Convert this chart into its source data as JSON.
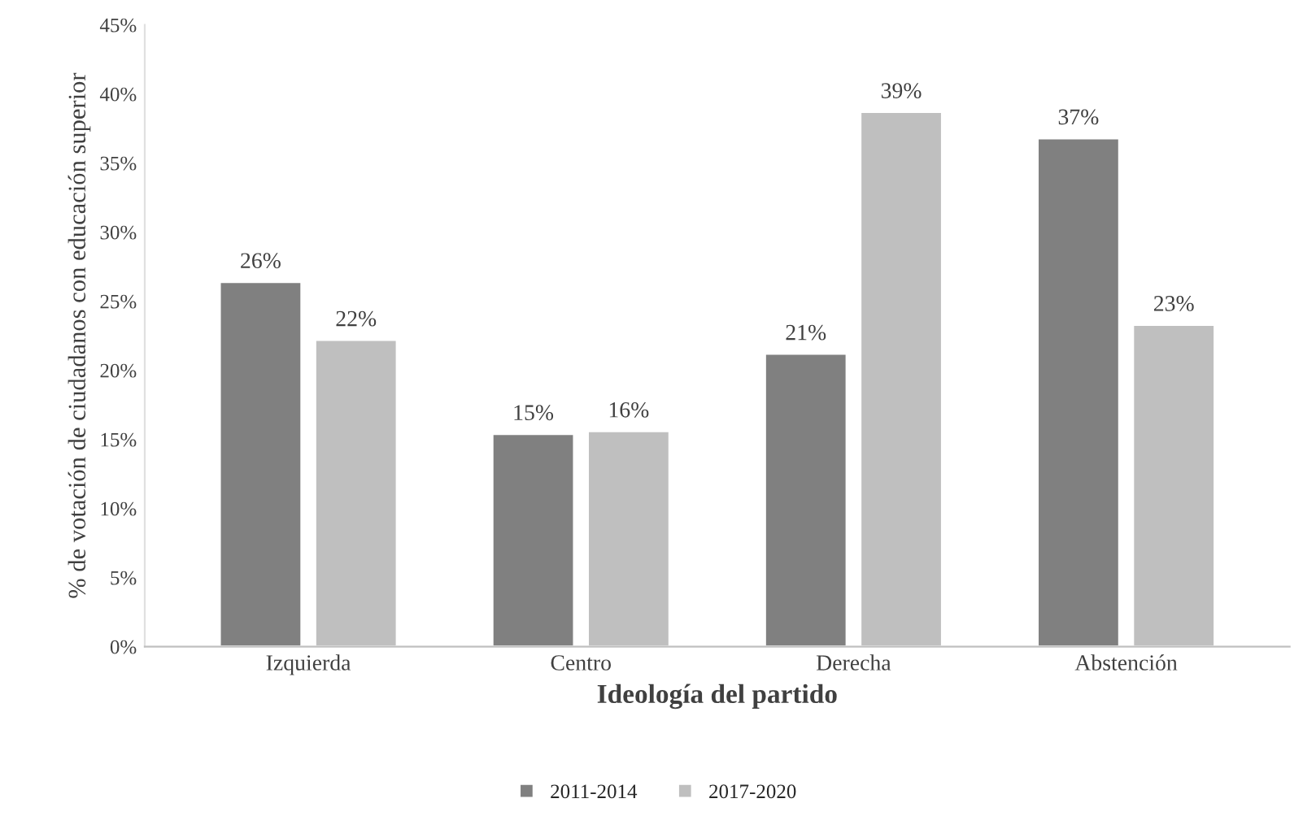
{
  "chart_data": {
    "type": "bar",
    "xlabel": "Ideología del partido",
    "ylabel": "% de votación de ciudadanos con educación superior",
    "categories": [
      "Izquierda",
      "Centro",
      "Derecha",
      "Abstención"
    ],
    "series": [
      {
        "name": "2011-2014",
        "color": "#808080",
        "values": [
          26.4,
          15.4,
          21.2,
          36.8
        ],
        "value_labels": [
          "26%",
          "15%",
          "21%",
          "37%"
        ]
      },
      {
        "name": "2017-2020",
        "color": "#bfbfbf",
        "values": [
          22.2,
          15.6,
          38.7,
          23.3
        ],
        "value_labels": [
          "22%",
          "16%",
          "39%",
          "23%"
        ]
      }
    ],
    "ylim": [
      0,
      45
    ],
    "yticks": [
      {
        "value": 0,
        "label": "0%"
      },
      {
        "value": 5,
        "label": "5%"
      },
      {
        "value": 10,
        "label": "10%"
      },
      {
        "value": 15,
        "label": "15%"
      },
      {
        "value": 20,
        "label": "20%"
      },
      {
        "value": 25,
        "label": "25%"
      },
      {
        "value": 30,
        "label": "30%"
      },
      {
        "value": 35,
        "label": "35%"
      },
      {
        "value": 40,
        "label": "40%"
      },
      {
        "value": 45,
        "label": "45%"
      }
    ],
    "grid": false,
    "legend": "bottom"
  }
}
